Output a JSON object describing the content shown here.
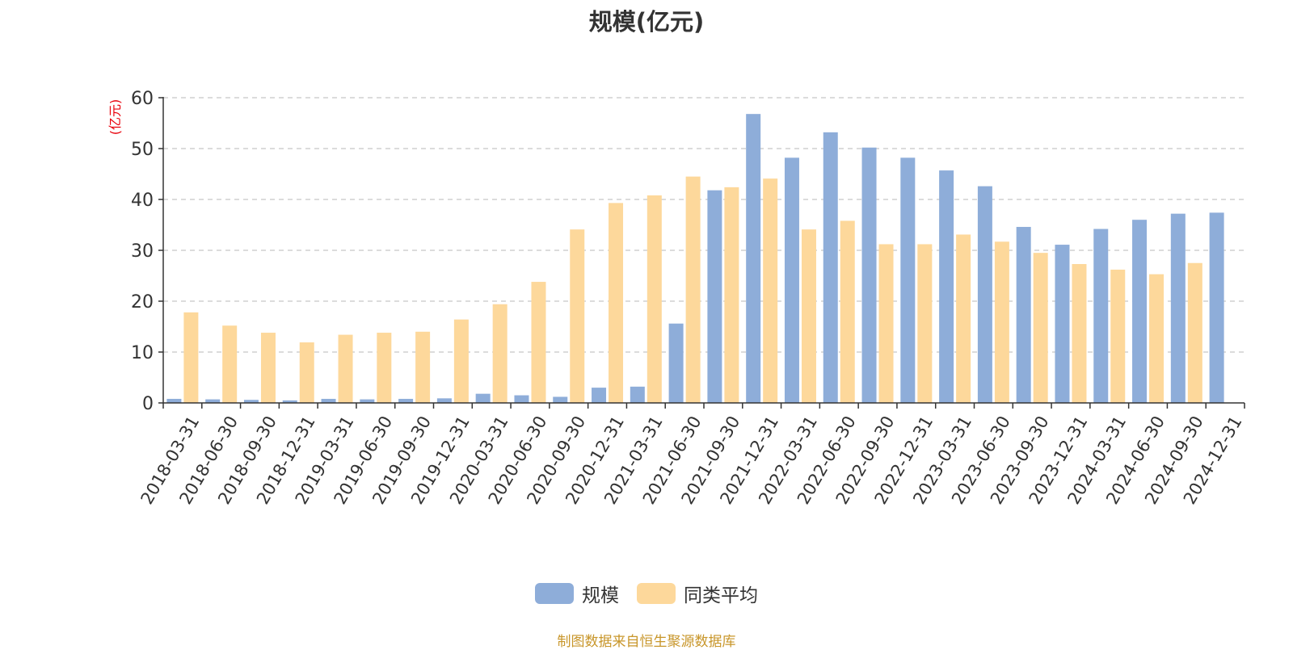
{
  "chart_data": {
    "type": "bar",
    "title": "规模(亿元)",
    "ylabel": "(亿元)",
    "ylim": [
      0,
      60
    ],
    "yticks": [
      0,
      10,
      20,
      30,
      40,
      50,
      60
    ],
    "grid": true,
    "legend_position": "bottom-center",
    "categories": [
      "2018-03-31",
      "2018-06-30",
      "2018-09-30",
      "2018-12-31",
      "2019-03-31",
      "2019-06-30",
      "2019-09-30",
      "2019-12-31",
      "2020-03-31",
      "2020-06-30",
      "2020-09-30",
      "2020-12-31",
      "2021-03-31",
      "2021-06-30",
      "2021-09-30",
      "2021-12-31",
      "2022-03-31",
      "2022-06-30",
      "2022-09-30",
      "2022-12-31",
      "2023-03-31",
      "2023-06-30",
      "2023-09-30",
      "2023-12-31",
      "2024-03-31",
      "2024-06-30",
      "2024-09-30",
      "2024-12-31"
    ],
    "series": [
      {
        "name": "规模",
        "color": "#8eadd9",
        "values": [
          0.8,
          0.7,
          0.6,
          0.5,
          0.8,
          0.7,
          0.8,
          0.9,
          1.8,
          1.5,
          1.2,
          3.0,
          3.2,
          15.6,
          41.8,
          56.8,
          48.2,
          53.2,
          50.2,
          48.2,
          45.7,
          42.6,
          34.6,
          31.1,
          34.2,
          36.0,
          37.2,
          37.4
        ]
      },
      {
        "name": "同类平均",
        "color": "#fdd89b",
        "values": [
          17.8,
          15.2,
          13.8,
          11.9,
          13.4,
          13.8,
          14.0,
          16.4,
          19.4,
          23.8,
          34.1,
          39.3,
          40.8,
          44.5,
          42.4,
          44.1,
          34.1,
          35.8,
          31.2,
          31.2,
          33.1,
          31.7,
          29.5,
          27.3,
          26.2,
          25.3,
          27.5,
          null
        ]
      }
    ]
  },
  "source_note": "制图数据来自恒生聚源数据库"
}
